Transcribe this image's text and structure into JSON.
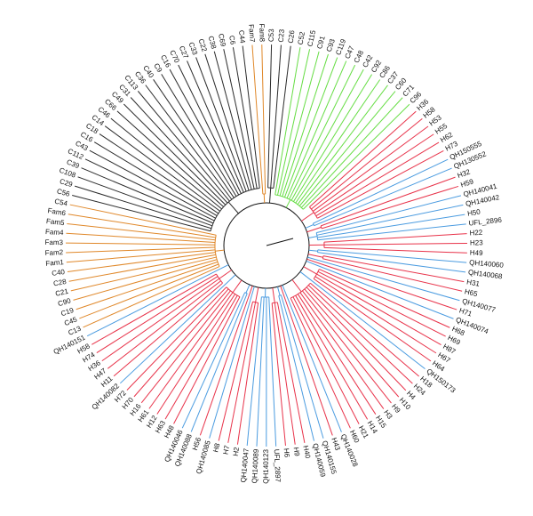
{
  "groups": [
    {
      "color": "#e0882a",
      "labels": [
        "C13",
        "C45",
        "C19",
        "C90",
        "C21",
        "C28",
        "C40",
        "Fam1",
        "Fam2",
        "Fam3",
        "Fam4",
        "Fam5",
        "Fam6",
        "C54"
      ]
    },
    {
      "color": "#2b2b2b",
      "labels": [
        "C56",
        "C29",
        "C108",
        "C39",
        "C112",
        "C43",
        "C16",
        "C18",
        "C14",
        "C46",
        "C66",
        "C49",
        "C31",
        "C113",
        "C36",
        "C40",
        "C9",
        "C16",
        "C70",
        "C27",
        "C33",
        "C22",
        "C38",
        "C69",
        "C6",
        "C44"
      ]
    },
    {
      "color": "#e0882a",
      "labels": [
        "Fam7",
        "Fam8"
      ]
    },
    {
      "color": "#2b2b2b",
      "labels": [
        "C53",
        "C23",
        "C26"
      ]
    },
    {
      "color": "#66dd44",
      "labels": [
        "C52",
        "C115",
        "C91",
        "C93",
        "C119",
        "C47",
        "C48",
        "C42",
        "C92",
        "C86",
        "C37",
        "C60",
        "C71",
        "C96"
      ]
    },
    {
      "color": "#e8334a",
      "labels": [
        "H36",
        "H58",
        "H53",
        "H55",
        "H62",
        "H73"
      ]
    },
    {
      "color": "#4a9be0",
      "labels": [
        "QH150555",
        "QH130552"
      ]
    },
    {
      "color": "#e8334a",
      "labels": [
        "H32",
        "H59"
      ]
    },
    {
      "color": "#4a9be0",
      "labels": [
        "QH140041",
        "QH140042",
        "H50",
        "UFL_2896"
      ]
    },
    {
      "color": "#e8334a",
      "labels": [
        "H22",
        "H23",
        "H49"
      ]
    },
    {
      "color": "#4a9be0",
      "labels": [
        "QH140060",
        "QH140068"
      ]
    },
    {
      "color": "#e8334a",
      "labels": [
        "H31",
        "H65"
      ]
    },
    {
      "color": "#4a9be0",
      "labels": [
        "QH140077"
      ]
    },
    {
      "color": "#e8334a",
      "labels": [
        "H71"
      ]
    },
    {
      "color": "#4a9be0",
      "labels": [
        "QH140074"
      ]
    },
    {
      "color": "#e8334a",
      "labels": [
        "H68",
        "H69",
        "H87",
        "H67",
        "H64"
      ]
    },
    {
      "color": "#4a9be0",
      "labels": [
        "QH150173"
      ]
    },
    {
      "color": "#e8334a",
      "labels": [
        "H18",
        "H24",
        "H4",
        "H10",
        "H9",
        "H3",
        "H15",
        "H14",
        "H21",
        "H60"
      ]
    },
    {
      "color": "#4a9be0",
      "labels": [
        "QH140028"
      ]
    },
    {
      "color": "#e8334a",
      "labels": [
        "H43"
      ]
    },
    {
      "color": "#4a9be0",
      "labels": [
        "QH140155",
        "QH140059"
      ]
    },
    {
      "color": "#e8334a",
      "labels": [
        "H40",
        "H9",
        "H6"
      ]
    },
    {
      "color": "#4a9be0",
      "labels": [
        "UFL_2897",
        "QH140123",
        "QH140089",
        "QH140047"
      ]
    },
    {
      "color": "#e8334a",
      "labels": [
        "H2",
        "H7",
        "H8"
      ]
    },
    {
      "color": "#4a9be0",
      "labels": [
        "QH140085"
      ]
    },
    {
      "color": "#e8334a",
      "labels": [
        "H56"
      ]
    },
    {
      "color": "#4a9be0",
      "labels": [
        "QH140088",
        "QH140046"
      ]
    },
    {
      "color": "#e8334a",
      "labels": [
        "H48",
        "H63",
        "H12",
        "H61",
        "H16",
        "H70",
        "H72"
      ]
    },
    {
      "color": "#4a9be0",
      "labels": [
        "QH140082"
      ]
    },
    {
      "color": "#e8334a",
      "labels": [
        "H11",
        "H47",
        "H36",
        "H74",
        "H58"
      ]
    },
    {
      "color": "#4a9be0",
      "labels": [
        "QH140151"
      ]
    }
  ]
}
